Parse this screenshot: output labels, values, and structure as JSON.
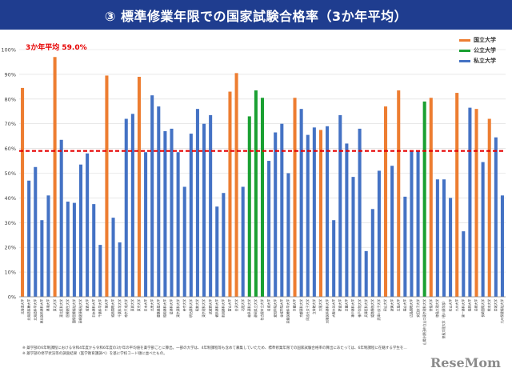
{
  "title": "③ 標準修業年限での国家試験合格率（3か年平均）",
  "average_label": "3か年平均  59.0%",
  "legend": [
    {
      "label": "国立大学",
      "color": "#ed7d31"
    },
    {
      "label": "公立大学",
      "color": "#1aa032"
    },
    {
      "label": "私立大学",
      "color": "#4472c4"
    }
  ],
  "notes": [
    "※ 薬学部の6年制課程における令和4年度から令和6年度の3か年の平均値を薬学部ごとに算出。一部の大学は、4年制課程等も含めて募集していたため、標準修業年限での国家試験合格率の算出にあたっては、6年制課程に在籍する学生を…",
    "※ 薬学部の修学状況等の調査結果（医学教育課調べ）を基に学校コード順に並べたもの。"
  ],
  "watermark": "ReseMom",
  "chart_data": {
    "type": "bar",
    "ylim": [
      0,
      100
    ],
    "yticks": [
      "0%",
      "10%",
      "20%",
      "30%",
      "40%",
      "50%",
      "60%",
      "70%",
      "80%",
      "90%",
      "100%"
    ],
    "average": 59.0,
    "average_color": "#e60000",
    "grid": true,
    "legend_position": "top-right",
    "bars": [
      {
        "name": "北海道大学",
        "value": 84.5,
        "type": "national"
      },
      {
        "name": "北海道医療大学",
        "value": 47,
        "type": "private"
      },
      {
        "name": "北海道科学大学",
        "value": 52.5,
        "type": "private"
      },
      {
        "name": "東北医科薬科大学",
        "value": 31,
        "type": "private"
      },
      {
        "name": "奥羽大学",
        "value": 41,
        "type": "private"
      },
      {
        "name": "東北大学",
        "value": 97,
        "type": "national"
      },
      {
        "name": "東北医科大学",
        "value": 63.5,
        "type": "private"
      },
      {
        "name": "医療創生大学",
        "value": 38.5,
        "type": "private"
      },
      {
        "name": "国際医療福祉大学",
        "value": 38,
        "type": "private"
      },
      {
        "name": "高崎健康福祉大学",
        "value": 53.5,
        "type": "private"
      },
      {
        "name": "城西大学",
        "value": 58,
        "type": "private"
      },
      {
        "name": "日本薬科大学",
        "value": 37.5,
        "type": "private"
      },
      {
        "name": "千葉科学大学",
        "value": 21,
        "type": "private"
      },
      {
        "name": "千葉大学",
        "value": 89.5,
        "type": "national"
      },
      {
        "name": "城西国際大学",
        "value": 32,
        "type": "private"
      },
      {
        "name": "千葉科学大学",
        "value": 22,
        "type": "private"
      },
      {
        "name": "帝京平成大学",
        "value": 72,
        "type": "private"
      },
      {
        "name": "東邦大学",
        "value": 74,
        "type": "private"
      },
      {
        "name": "東京大学",
        "value": 89,
        "type": "national"
      },
      {
        "name": "日本大学",
        "value": 58.5,
        "type": "private"
      },
      {
        "name": "北里大学",
        "value": 81.5,
        "type": "private"
      },
      {
        "name": "慶應義塾大学",
        "value": 77,
        "type": "private"
      },
      {
        "name": "昭和薬科大学",
        "value": 67,
        "type": "private"
      },
      {
        "name": "星薬科大学",
        "value": 68,
        "type": "private"
      },
      {
        "name": "東京薬科大学",
        "value": 58.5,
        "type": "private"
      },
      {
        "name": "帝京大学",
        "value": 44.5,
        "type": "private"
      },
      {
        "name": "明治薬科大学",
        "value": 66,
        "type": "private"
      },
      {
        "name": "昭和大学",
        "value": 76,
        "type": "private"
      },
      {
        "name": "東京理科大学",
        "value": 70,
        "type": "private"
      },
      {
        "name": "武蔵野大学",
        "value": 73.5,
        "type": "private"
      },
      {
        "name": "横浜薬科大学",
        "value": 36.5,
        "type": "private"
      },
      {
        "name": "新潟薬科大学",
        "value": 42,
        "type": "private"
      },
      {
        "name": "富山大学",
        "value": 83,
        "type": "national"
      },
      {
        "name": "金沢大学",
        "value": 90.5,
        "type": "national"
      },
      {
        "name": "北陸大学",
        "value": 44.5,
        "type": "private"
      },
      {
        "name": "岐阜薬科大学",
        "value": 73,
        "type": "public"
      },
      {
        "name": "静岡県立大学",
        "value": 83.5,
        "type": "public"
      },
      {
        "name": "名古屋市立大学",
        "value": 80.5,
        "type": "public"
      },
      {
        "name": "名城大学",
        "value": 55,
        "type": "private"
      },
      {
        "name": "愛知学院大学",
        "value": 66.5,
        "type": "private"
      },
      {
        "name": "金城学院大学",
        "value": 70,
        "type": "private"
      },
      {
        "name": "鈴鹿医療科学大学",
        "value": 50,
        "type": "private"
      },
      {
        "name": "京都大学",
        "value": 80.5,
        "type": "national"
      },
      {
        "name": "京都薬科大学",
        "value": 76,
        "type": "private"
      },
      {
        "name": "同志社女子大学",
        "value": 65.5,
        "type": "private"
      },
      {
        "name": "立命館大学",
        "value": 68.5,
        "type": "private"
      },
      {
        "name": "大阪大学",
        "value": 67.5,
        "type": "national"
      },
      {
        "name": "大阪医科薬科大学",
        "value": 69,
        "type": "private"
      },
      {
        "name": "大阪大谷大学",
        "value": 31,
        "type": "private"
      },
      {
        "name": "摂南大学",
        "value": 73.5,
        "type": "private"
      },
      {
        "name": "近畿大学",
        "value": 62,
        "type": "private"
      },
      {
        "name": "神戸薬科大学",
        "value": 48.5,
        "type": "private"
      },
      {
        "name": "神戸学院大学",
        "value": 68,
        "type": "private"
      },
      {
        "name": "兵庫医科大学",
        "value": 18.5,
        "type": "private"
      },
      {
        "name": "姫路獨協大学",
        "value": 35.5,
        "type": "private"
      },
      {
        "name": "武庫川女子大学",
        "value": 51,
        "type": "private"
      },
      {
        "name": "岡山大学",
        "value": 77,
        "type": "national"
      },
      {
        "name": "就実大学",
        "value": 53,
        "type": "private"
      },
      {
        "name": "広島大学",
        "value": 83.5,
        "type": "national"
      },
      {
        "name": "福山大学",
        "value": 40.5,
        "type": "private"
      },
      {
        "name": "広島国際大学",
        "value": 59,
        "type": "private"
      },
      {
        "name": "安田女子大学",
        "value": 59,
        "type": "private"
      },
      {
        "name": "山陽小野田市立山口東京理科大学",
        "value": 79,
        "type": "public"
      },
      {
        "name": "徳島大学",
        "value": 80.5,
        "type": "national"
      },
      {
        "name": "徳島文理大学",
        "value": 47.5,
        "type": "private"
      },
      {
        "name": "徳島文理大学（香川薬学部）",
        "value": 47.5,
        "type": "private"
      },
      {
        "name": "松山大学",
        "value": 40,
        "type": "private"
      },
      {
        "name": "九州大学",
        "value": 82.5,
        "type": "national"
      },
      {
        "name": "第一薬科大学",
        "value": 26.5,
        "type": "private"
      },
      {
        "name": "福岡大学",
        "value": 76.5,
        "type": "private"
      },
      {
        "name": "長崎大学",
        "value": 76,
        "type": "national"
      },
      {
        "name": "長崎国際大学",
        "value": 54.5,
        "type": "private"
      },
      {
        "name": "熊本大学",
        "value": 72,
        "type": "national"
      },
      {
        "name": "崇城大学",
        "value": 64.5,
        "type": "private"
      },
      {
        "name": "九州保健福祉大学",
        "value": 41,
        "type": "private"
      }
    ]
  }
}
